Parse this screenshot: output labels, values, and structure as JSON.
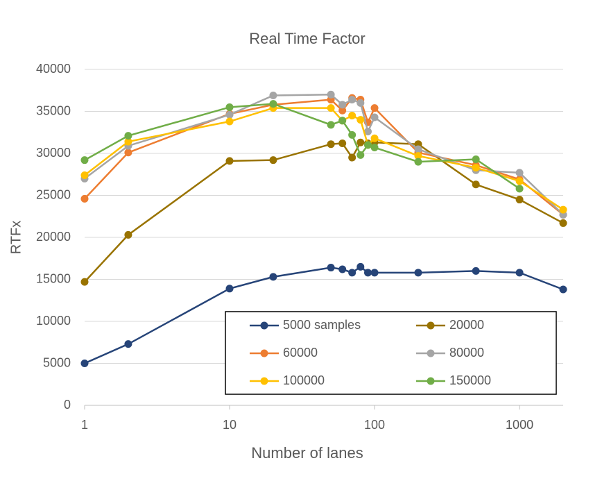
{
  "chart_data": {
    "type": "line",
    "title": "Real Time Factor",
    "x_label": "Number of lanes",
    "y_label": "RTFx",
    "x": [
      1,
      2,
      10,
      20,
      50,
      60,
      70,
      80,
      90,
      100,
      200,
      500,
      1000,
      2000
    ],
    "xscale": "log",
    "xlim": [
      1,
      2000
    ],
    "xticks": [
      1,
      10,
      100,
      1000
    ],
    "ylim": [
      0,
      40000
    ],
    "yticks": [
      0,
      5000,
      10000,
      15000,
      20000,
      25000,
      30000,
      35000,
      40000
    ],
    "grid": true,
    "legend": "lower right",
    "series": [
      {
        "name": "5000 samples",
        "color": "#264478",
        "values": [
          5000,
          7300,
          13900,
          15300,
          16400,
          16200,
          15800,
          16500,
          15800,
          15800,
          15800,
          16000,
          15800,
          13800
        ]
      },
      {
        "name": "20000",
        "color": "#997300",
        "values": [
          14700,
          20300,
          29100,
          29200,
          31100,
          31200,
          29500,
          31300,
          31200,
          31300,
          31100,
          26300,
          24500,
          21700
        ]
      },
      {
        "name": "60000",
        "color": "#ED7D31",
        "values": [
          24600,
          30100,
          34700,
          35800,
          36400,
          35100,
          36600,
          36400,
          33700,
          35400,
          30100,
          28600,
          26900,
          22700
        ]
      },
      {
        "name": "80000",
        "color": "#A5A5A5",
        "values": [
          27000,
          30900,
          34600,
          36900,
          37000,
          35800,
          36400,
          36000,
          32600,
          34300,
          30500,
          28000,
          27700,
          22700
        ]
      },
      {
        "name": "100000",
        "color": "#FFC000",
        "values": [
          27400,
          31400,
          33800,
          35400,
          35400,
          33900,
          34500,
          34000,
          31000,
          31800,
          29700,
          28300,
          26700,
          23300
        ]
      },
      {
        "name": "150000",
        "color": "#70AD47",
        "values": [
          29200,
          32100,
          35500,
          35900,
          33400,
          33900,
          32200,
          29800,
          31000,
          30700,
          29000,
          29300,
          25800,
          null
        ]
      }
    ]
  }
}
